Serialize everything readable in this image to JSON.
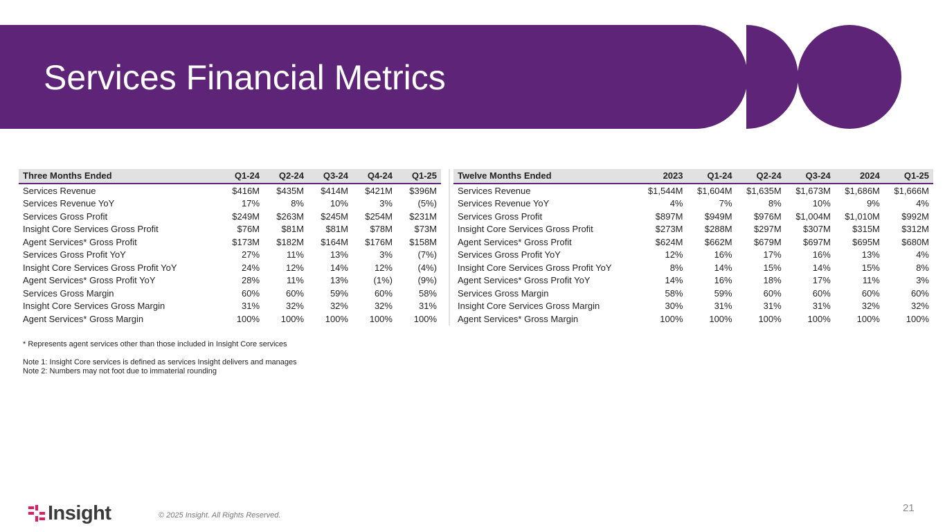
{
  "slide": {
    "title": "Services Financial Metrics",
    "page_number": "21",
    "copyright": "© 2025 Insight. All Rights Reserved.",
    "logo_text": "Insight",
    "logo_icon": "insight-logo-icon",
    "brand_color": "#5e2478",
    "accent_color": "#e5195e"
  },
  "tables": {
    "three_month": {
      "headers": [
        "Three Months Ended",
        "Q1-24",
        "Q2-24",
        "Q3-24",
        "Q4-24",
        "Q1-25"
      ],
      "rows": [
        [
          "Services Revenue",
          "$416M",
          "$435M",
          "$414M",
          "$421M",
          "$396M"
        ],
        [
          "Services Revenue YoY",
          "17%",
          "8%",
          "10%",
          "3%",
          "(5%)"
        ],
        [
          "Services Gross Profit",
          "$249M",
          "$263M",
          "$245M",
          "$254M",
          "$231M"
        ],
        [
          "Insight Core Services Gross Profit",
          "$76M",
          "$81M",
          "$81M",
          "$78M",
          "$73M"
        ],
        [
          "Agent Services* Gross Profit",
          "$173M",
          "$182M",
          "$164M",
          "$176M",
          "$158M"
        ],
        [
          "Services Gross Profit YoY",
          "27%",
          "11%",
          "13%",
          "3%",
          "(7%)"
        ],
        [
          "Insight Core Services Gross Profit YoY",
          "24%",
          "12%",
          "14%",
          "12%",
          "(4%)"
        ],
        [
          "Agent Services* Gross Profit YoY",
          "28%",
          "11%",
          "13%",
          "(1%)",
          "(9%)"
        ],
        [
          "Services Gross Margin",
          "60%",
          "60%",
          "59%",
          "60%",
          "58%"
        ],
        [
          "Insight Core Services Gross Margin",
          "31%",
          "32%",
          "32%",
          "32%",
          "31%"
        ],
        [
          "Agent Services* Gross Margin",
          "100%",
          "100%",
          "100%",
          "100%",
          "100%"
        ]
      ]
    },
    "twelve_month": {
      "headers": [
        "Twelve Months Ended",
        "2023",
        "Q1-24",
        "Q2-24",
        "Q3-24",
        "2024",
        "Q1-25"
      ],
      "rows": [
        [
          "Services Revenue",
          "$1,544M",
          "$1,604M",
          "$1,635M",
          "$1,673M",
          "$1,686M",
          "$1,666M"
        ],
        [
          "Services Revenue YoY",
          "4%",
          "7%",
          "8%",
          "10%",
          "9%",
          "4%"
        ],
        [
          "Services Gross Profit",
          "$897M",
          "$949M",
          "$976M",
          "$1,004M",
          "$1,010M",
          "$992M"
        ],
        [
          "Insight Core Services Gross Profit",
          "$273M",
          "$288M",
          "$297M",
          "$307M",
          "$315M",
          "$312M"
        ],
        [
          "Agent Services* Gross Profit",
          "$624M",
          "$662M",
          "$679M",
          "$697M",
          "$695M",
          "$680M"
        ],
        [
          "Services Gross Profit YoY",
          "12%",
          "16%",
          "17%",
          "16%",
          "13%",
          "4%"
        ],
        [
          "Insight Core Services Gross Profit YoY",
          "8%",
          "14%",
          "15%",
          "14%",
          "15%",
          "8%"
        ],
        [
          "Agent Services* Gross Profit YoY",
          "14%",
          "16%",
          "18%",
          "17%",
          "11%",
          "3%"
        ],
        [
          "Services Gross Margin",
          "58%",
          "59%",
          "60%",
          "60%",
          "60%",
          "60%"
        ],
        [
          "Insight Core Services Gross Margin",
          "30%",
          "31%",
          "31%",
          "31%",
          "32%",
          "32%"
        ],
        [
          "Agent Services* Gross Margin",
          "100%",
          "100%",
          "100%",
          "100%",
          "100%",
          "100%"
        ]
      ]
    }
  },
  "notes": {
    "footnote": "* Represents agent services other than those included in Insight Core services",
    "note1": "Note 1: Insight Core services is defined as services Insight delivers and manages",
    "note2": "Note 2: Numbers may not foot due to immaterial rounding"
  }
}
